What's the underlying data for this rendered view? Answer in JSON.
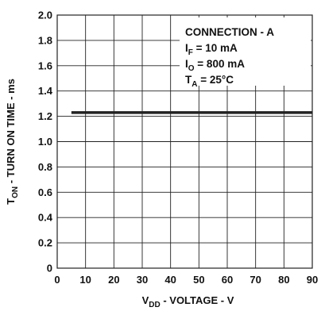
{
  "chart_data": {
    "type": "line",
    "title": "",
    "xlabel": {
      "main": "V",
      "sub": "DD",
      "rest": " - VOLTAGE - V"
    },
    "ylabel": {
      "main": "T",
      "sub": "ON",
      "rest": " - TURN ON TIME - ms"
    },
    "xlim": [
      0,
      90
    ],
    "ylim": [
      0,
      2.0
    ],
    "x_ticks": [
      0,
      10,
      20,
      30,
      40,
      50,
      60,
      70,
      80,
      90
    ],
    "x_tick_labels": [
      "0",
      "10",
      "20",
      "30",
      "40",
      "50",
      "60",
      "70",
      "80",
      "90"
    ],
    "y_ticks": [
      0,
      0.2,
      0.4,
      0.6,
      0.8,
      1.0,
      1.2,
      1.4,
      1.6,
      1.8,
      2.0
    ],
    "y_tick_labels": [
      "0",
      "0.2",
      "0.4",
      "0.6",
      "0.8",
      "1.0",
      "1.2",
      "1.4",
      "1.6",
      "1.8",
      "2.0"
    ],
    "grid": true,
    "series": [
      {
        "x": [
          5,
          90
        ],
        "y": [
          1.23,
          1.23
        ]
      }
    ],
    "annotation": {
      "placement": "top-right",
      "lines": [
        {
          "main": "CONNECTION - A",
          "sub": "",
          "rest": ""
        },
        {
          "main": "I",
          "sub": "F",
          "rest": " = 10 mA"
        },
        {
          "main": "I",
          "sub": "O",
          "rest": " = 800 mA"
        },
        {
          "main": "T",
          "sub": "A",
          "rest": " = 25°C"
        }
      ]
    },
    "colors": {
      "line": "#222222",
      "grid": "#222222",
      "text": "#111111"
    }
  }
}
